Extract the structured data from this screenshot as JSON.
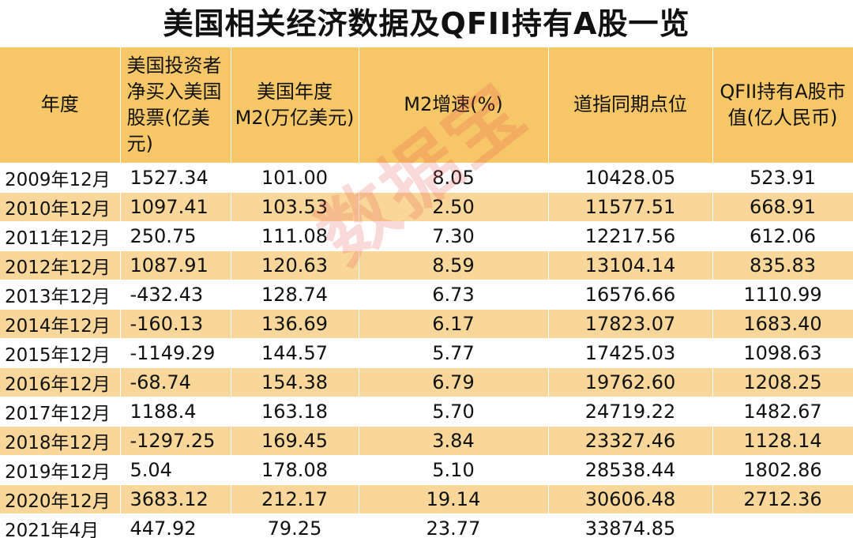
{
  "title": "美国相关经济数据及QFII持有A股一览",
  "watermark": "数据宝",
  "headers": [
    "年度",
    "美国投资者净买入美国股票(亿美元)",
    "美国年度M2(万亿美元)",
    "M2增速(%)",
    "道指同期点位",
    "QFII持有A股市值(亿人民币)"
  ],
  "rows": [
    {
      "year": "2009年12月",
      "net_buy": "1527.34",
      "m2": "101.00",
      "m2_growth": "8.05",
      "dow": "10428.05",
      "qfii": "523.91"
    },
    {
      "year": "2010年12月",
      "net_buy": "1097.41",
      "m2": "103.53",
      "m2_growth": "2.50",
      "dow": "11577.51",
      "qfii": "668.91"
    },
    {
      "year": "2011年12月",
      "net_buy": "250.75",
      "m2": "111.08",
      "m2_growth": "7.30",
      "dow": "12217.56",
      "qfii": "612.06"
    },
    {
      "year": "2012年12月",
      "net_buy": "1087.91",
      "m2": "120.63",
      "m2_growth": "8.59",
      "dow": "13104.14",
      "qfii": "835.83"
    },
    {
      "year": "2013年12月",
      "net_buy": "-432.43",
      "m2": "128.74",
      "m2_growth": "6.73",
      "dow": "16576.66",
      "qfii": "1110.99"
    },
    {
      "year": "2014年12月",
      "net_buy": "-160.13",
      "m2": "136.69",
      "m2_growth": "6.17",
      "dow": "17823.07",
      "qfii": "1683.40"
    },
    {
      "year": "2015年12月",
      "net_buy": "-1149.29",
      "m2": "144.57",
      "m2_growth": "5.77",
      "dow": "17425.03",
      "qfii": "1098.63"
    },
    {
      "year": "2016年12月",
      "net_buy": "-68.74",
      "m2": "154.38",
      "m2_growth": "6.79",
      "dow": "19762.60",
      "qfii": "1208.25"
    },
    {
      "year": "2017年12月",
      "net_buy": "1188.4",
      "m2": "163.18",
      "m2_growth": "5.70",
      "dow": "24719.22",
      "qfii": "1482.67"
    },
    {
      "year": "2018年12月",
      "net_buy": "-1297.25",
      "m2": "169.45",
      "m2_growth": "3.84",
      "dow": "23327.46",
      "qfii": "1128.14"
    },
    {
      "year": "2019年12月",
      "net_buy": "5.04",
      "m2": "178.08",
      "m2_growth": "5.10",
      "dow": "28538.44",
      "qfii": "1802.86"
    },
    {
      "year": "2020年12月",
      "net_buy": "3683.12",
      "m2": "212.17",
      "m2_growth": "19.14",
      "dow": "30606.48",
      "qfii": "2712.36"
    },
    {
      "year": "2021年4月",
      "net_buy": "447.92",
      "m2": "79.25",
      "m2_growth": "23.77",
      "dow": "33874.85",
      "qfii": ""
    }
  ],
  "colors": {
    "header_bg": "#f6c766",
    "stripe_bg": "#f9d79a",
    "row_bg": "#ffffff",
    "watermark": "#e85050"
  }
}
